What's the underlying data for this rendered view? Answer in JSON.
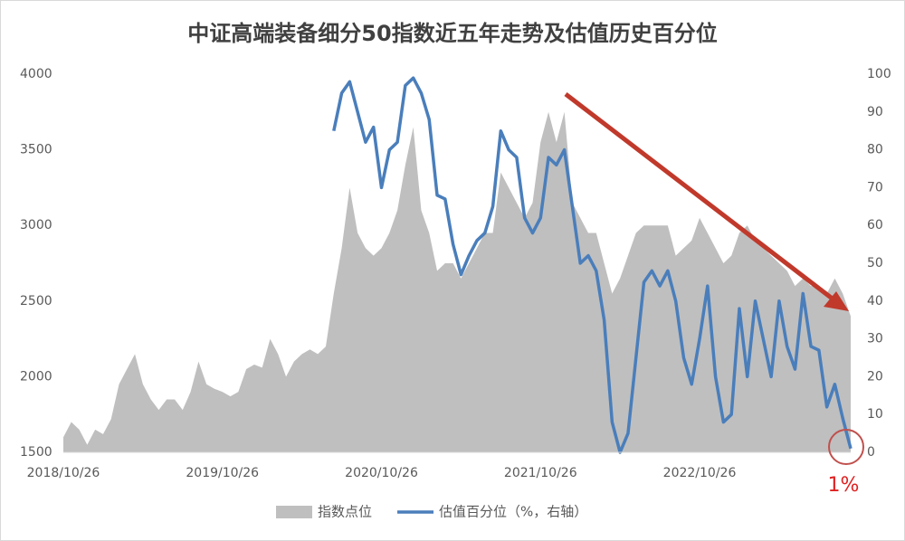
{
  "chart_data": {
    "type": "area-line",
    "title": "中证高端装备细分50指数近五年走势及估值历史百分位",
    "annotation": "1%",
    "categories": [
      "2018/10/26",
      null,
      null,
      null,
      null,
      null,
      null,
      null,
      null,
      null,
      null,
      null,
      null,
      null,
      null,
      null,
      null,
      null,
      null,
      null,
      "2019/10/26",
      null,
      null,
      null,
      null,
      null,
      null,
      null,
      null,
      null,
      null,
      null,
      null,
      null,
      null,
      null,
      null,
      null,
      null,
      null,
      "2020/10/26",
      null,
      null,
      null,
      null,
      null,
      null,
      null,
      null,
      null,
      null,
      null,
      null,
      null,
      null,
      null,
      null,
      null,
      null,
      null,
      "2021/10/26",
      null,
      null,
      null,
      null,
      null,
      null,
      null,
      null,
      null,
      null,
      null,
      null,
      null,
      null,
      null,
      null,
      null,
      null,
      null,
      "2022/10/26",
      null,
      null,
      null,
      null,
      null,
      null,
      null,
      null,
      null,
      null,
      null,
      null,
      null,
      null,
      null,
      null,
      null,
      null,
      null
    ],
    "series": [
      {
        "name": "指数点位",
        "color": "#bfbfbf",
        "kind": "area",
        "values": [
          1600,
          1700,
          1650,
          1550,
          1650,
          1620,
          1720,
          1950,
          2050,
          2150,
          1950,
          1850,
          1780,
          1850,
          1850,
          1780,
          1900,
          2100,
          1950,
          1920,
          1900,
          1870,
          1900,
          2050,
          2080,
          2060,
          2250,
          2150,
          2000,
          2100,
          2150,
          2180,
          2150,
          2200,
          2550,
          2850,
          3250,
          2950,
          2850,
          2800,
          2850,
          2950,
          3100,
          3400,
          3650,
          3100,
          2950,
          2700,
          2750,
          2750,
          2650,
          2750,
          2850,
          2950,
          2950,
          3350,
          3250,
          3150,
          3050,
          3150,
          3550,
          3750,
          3550,
          3750,
          3150,
          3050,
          2950,
          2950,
          2750,
          2550,
          2650,
          2800,
          2950,
          3000,
          3000,
          3000,
          3000,
          2800,
          2850,
          2900,
          3050,
          2950,
          2850,
          2750,
          2800,
          2950,
          3000,
          2900,
          2850,
          2800,
          2750,
          2700,
          2600,
          2650,
          2600,
          2600,
          2550,
          2650,
          2550,
          2400
        ]
      },
      {
        "name": "估值百分位（%，右轴）",
        "color": "#4a7ebb",
        "kind": "line",
        "axis": "y2",
        "values": [
          null,
          null,
          null,
          null,
          null,
          null,
          null,
          null,
          null,
          null,
          null,
          null,
          null,
          null,
          null,
          null,
          null,
          null,
          null,
          null,
          null,
          null,
          null,
          null,
          null,
          null,
          null,
          null,
          null,
          null,
          null,
          null,
          null,
          null,
          85,
          95,
          98,
          90,
          82,
          86,
          70,
          80,
          82,
          97,
          99,
          95,
          88,
          68,
          67,
          55,
          47,
          52,
          56,
          58,
          65,
          85,
          80,
          78,
          62,
          58,
          62,
          78,
          76,
          80,
          65,
          50,
          52,
          48,
          35,
          8,
          0,
          5,
          25,
          45,
          48,
          44,
          48,
          40,
          25,
          18,
          30,
          44,
          20,
          8,
          10,
          38,
          20,
          40,
          30,
          20,
          40,
          28,
          22,
          42,
          28,
          27,
          12,
          18,
          9,
          1
        ]
      }
    ],
    "ylim": [
      1500,
      4000
    ],
    "yticks": [
      1500,
      2000,
      2500,
      3000,
      3500,
      4000
    ],
    "y2lim": [
      0,
      100
    ],
    "y2ticks": [
      0,
      10,
      20,
      30,
      40,
      50,
      60,
      70,
      80,
      90,
      100
    ]
  }
}
